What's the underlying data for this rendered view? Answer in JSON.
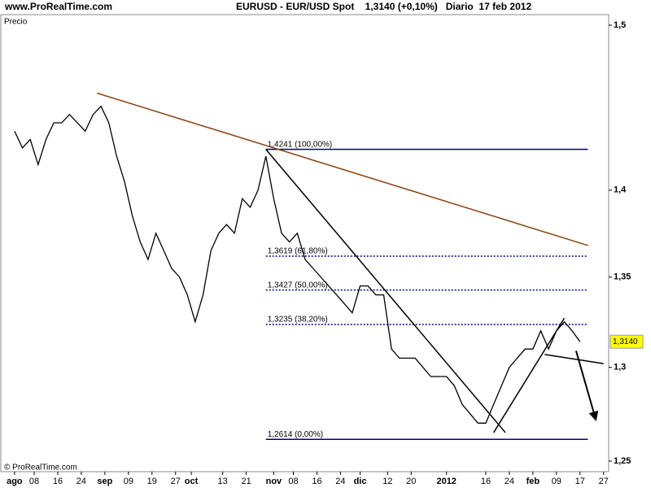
{
  "header": {
    "site": "www.ProRealTime.com",
    "title": "EURUSD - EUR/USD Spot    1,3140 (+0,10%)   Diario  17 feb 2012"
  },
  "footer": "© ProRealTime.com",
  "chart_data": {
    "type": "line",
    "panel_label": "Precio",
    "log_scale": true,
    "xlim": [
      -3.5,
      151.3
    ],
    "ylim": [
      1.25,
      1.5
    ],
    "yticks": [
      {
        "value": 1.25,
        "label": "1,25"
      },
      {
        "value": 1.3,
        "label": "1,3"
      },
      {
        "value": 1.35,
        "label": "1,35"
      },
      {
        "value": 1.4,
        "label": "1,4"
      },
      {
        "value": 1.5,
        "label": "1,5"
      }
    ],
    "xticks": [
      {
        "value": 0,
        "label": "ago"
      },
      {
        "value": 5,
        "label": "08"
      },
      {
        "value": 11,
        "label": "16"
      },
      {
        "value": 17,
        "label": "24"
      },
      {
        "value": 23,
        "label": "sep"
      },
      {
        "value": 29,
        "label": "09"
      },
      {
        "value": 35,
        "label": "19"
      },
      {
        "value": 41,
        "label": "27"
      },
      {
        "value": 45,
        "label": "oct"
      },
      {
        "value": 53,
        "label": "13"
      },
      {
        "value": 59,
        "label": "21"
      },
      {
        "value": 66,
        "label": "nov"
      },
      {
        "value": 71,
        "label": "08"
      },
      {
        "value": 77,
        "label": "16"
      },
      {
        "value": 83,
        "label": "24"
      },
      {
        "value": 88,
        "label": "dic"
      },
      {
        "value": 95,
        "label": "12"
      },
      {
        "value": 101,
        "label": "20"
      },
      {
        "value": 110,
        "label": "2012"
      },
      {
        "value": 120,
        "label": "16"
      },
      {
        "value": 126,
        "label": "24"
      },
      {
        "value": 132,
        "label": "feb"
      },
      {
        "value": 138,
        "label": "09"
      },
      {
        "value": 144,
        "label": "17"
      },
      {
        "value": 150,
        "label": "27"
      }
    ],
    "series": [
      {
        "name": "EURUSD",
        "color": "#000000",
        "x": [
          0,
          2,
          4,
          6,
          8,
          10,
          12,
          14,
          16,
          18,
          20,
          22,
          24,
          26,
          28,
          30,
          32,
          34,
          36,
          38,
          40,
          42,
          44,
          46,
          48,
          50,
          52,
          54,
          56,
          58,
          60,
          62,
          64,
          66,
          68,
          70,
          72,
          74,
          76,
          78,
          80,
          82,
          84,
          86,
          88,
          90,
          92,
          94,
          96,
          98,
          100,
          102,
          104,
          106,
          108,
          110,
          112,
          114,
          116,
          118,
          120,
          122,
          124,
          126,
          128,
          130,
          132,
          134,
          136,
          138,
          140,
          142,
          144
        ],
        "values": [
          1.435,
          1.425,
          1.43,
          1.415,
          1.43,
          1.44,
          1.44,
          1.445,
          1.44,
          1.435,
          1.445,
          1.45,
          1.44,
          1.42,
          1.405,
          1.385,
          1.37,
          1.36,
          1.375,
          1.365,
          1.355,
          1.35,
          1.34,
          1.325,
          1.34,
          1.365,
          1.375,
          1.38,
          1.375,
          1.395,
          1.39,
          1.4,
          1.42,
          1.395,
          1.375,
          1.37,
          1.375,
          1.36,
          1.355,
          1.35,
          1.345,
          1.34,
          1.335,
          1.33,
          1.345,
          1.345,
          1.34,
          1.34,
          1.31,
          1.305,
          1.305,
          1.305,
          1.3,
          1.295,
          1.295,
          1.295,
          1.29,
          1.28,
          1.275,
          1.27,
          1.27,
          1.28,
          1.29,
          1.3,
          1.305,
          1.31,
          1.31,
          1.32,
          1.31,
          1.32,
          1.325,
          1.32,
          1.314
        ]
      }
    ],
    "last_value": 1.314,
    "last_label": "1,3140",
    "levels": [
      {
        "value": 1.4241,
        "label": "1,4241 (100,00%)",
        "style": "solid"
      },
      {
        "value": 1.3619,
        "label": "1,3619 (61,80%)",
        "style": "dotted"
      },
      {
        "value": 1.3427,
        "label": "1,3427 (50,00%)",
        "style": "dotted"
      },
      {
        "value": 1.3235,
        "label": "1,3235 (38,20%)",
        "style": "dotted"
      },
      {
        "value": 1.2614,
        "label": "1,2614 (0,00%)",
        "style": "solid"
      }
    ],
    "levels_x": [
      64,
      146
    ],
    "levels_color": "#000080",
    "trendlines": [
      {
        "x": [
          21,
          146
        ],
        "y": [
          1.458,
          1.368
        ],
        "color": "#8b4513"
      },
      {
        "x": [
          64,
          125
        ],
        "y": [
          1.4241,
          1.265
        ],
        "color": "#000000"
      },
      {
        "x": [
          122,
          140
        ],
        "y": [
          1.265,
          1.327
        ],
        "color": "#000000"
      },
      {
        "x": [
          135,
          150
        ],
        "y": [
          1.307,
          1.302
        ],
        "color": "#000000"
      },
      {
        "x": [
          143,
          148
        ],
        "y": [
          1.309,
          1.272
        ],
        "color": "#000000",
        "arrow": true
      }
    ]
  }
}
